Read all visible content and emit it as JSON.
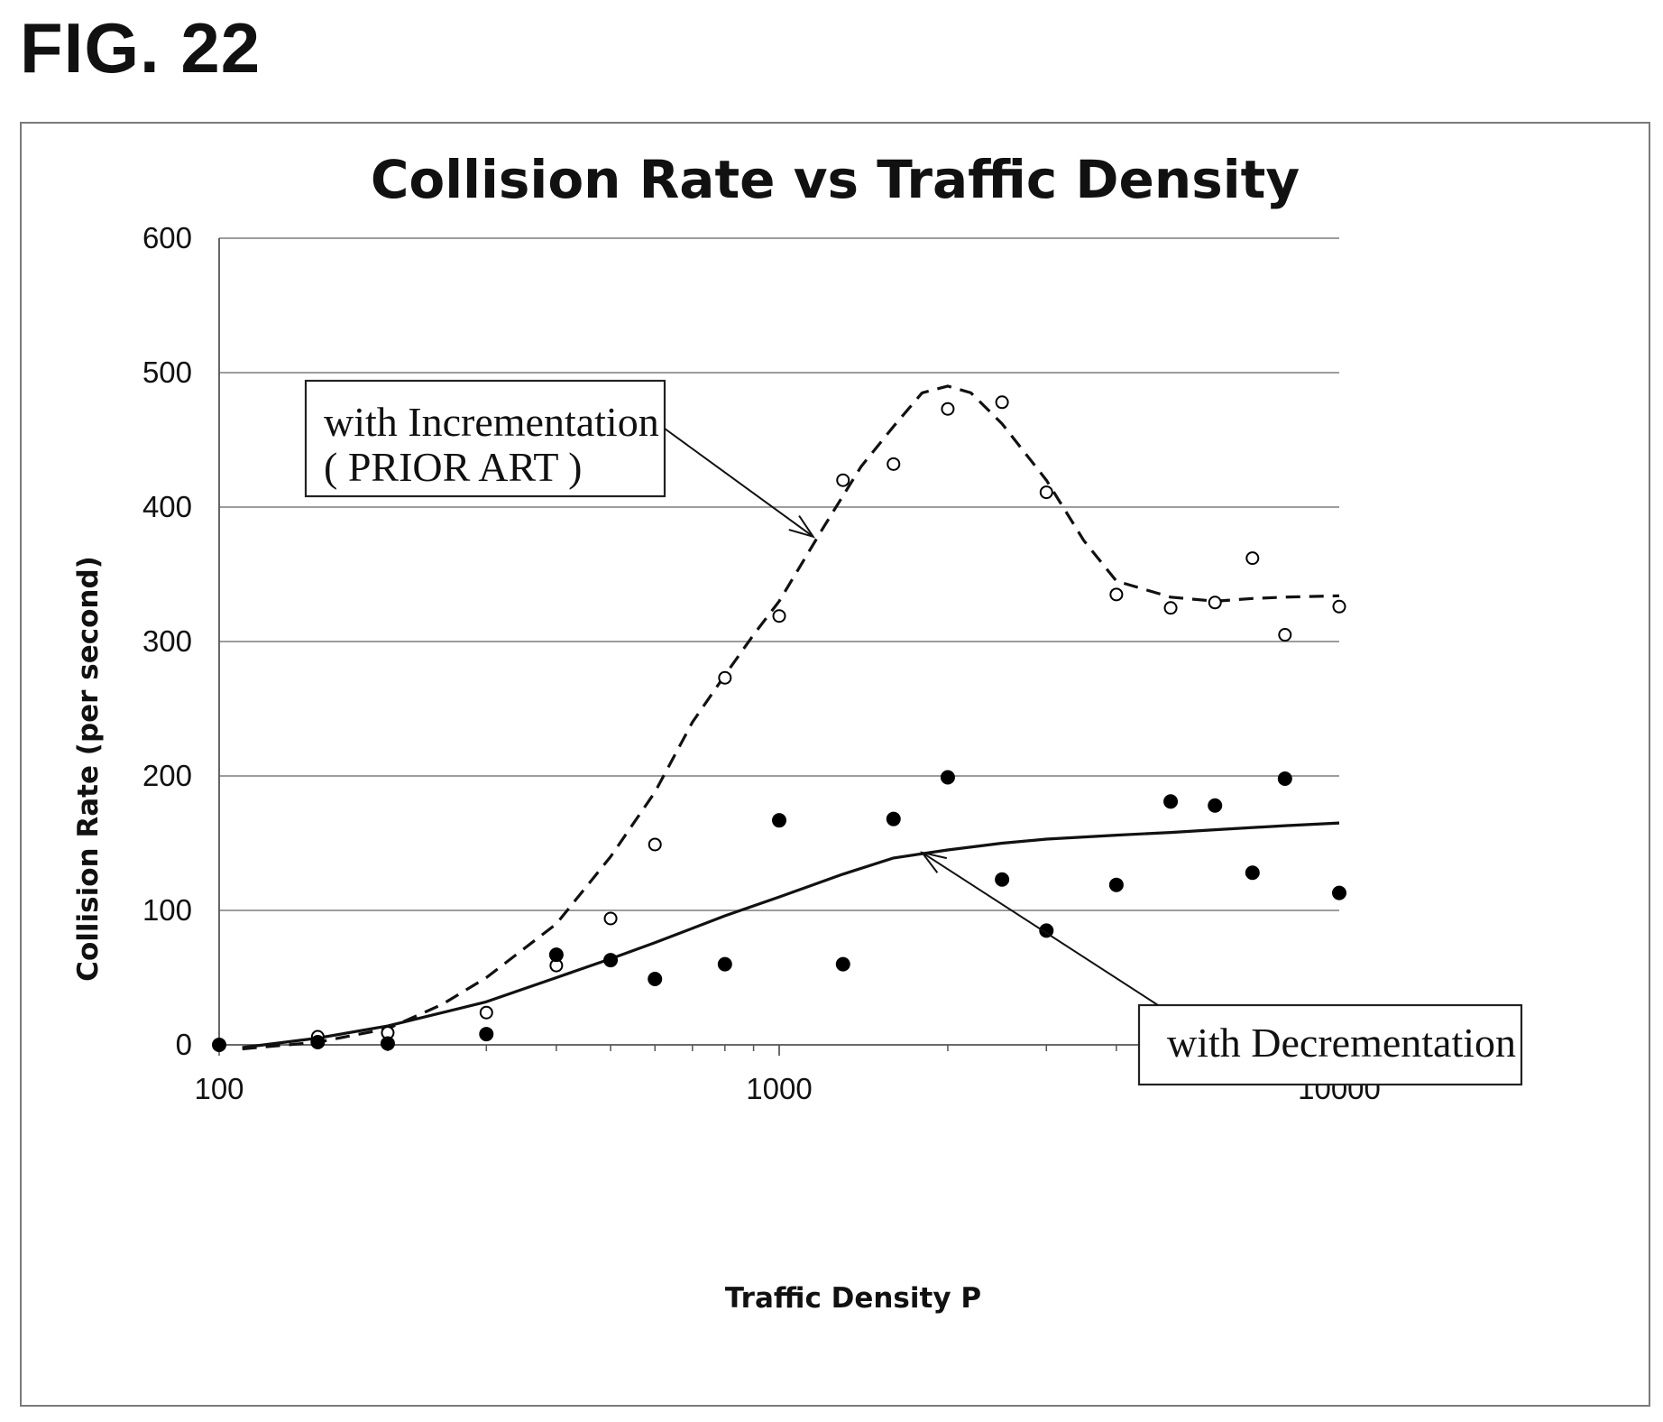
{
  "figure_label": "FIG. 22",
  "chart_data": {
    "type": "scatter",
    "title": "Collision Rate vs Traffic Density",
    "xlabel": "Traffic Density P",
    "ylabel": "Collision Rate  (per second)",
    "xscale": "log",
    "xlim": [
      100,
      10000
    ],
    "ylim": [
      0,
      600
    ],
    "x_ticks": [
      100,
      1000,
      10000
    ],
    "x_tick_labels": [
      "100",
      "1000",
      "10000"
    ],
    "y_ticks": [
      0,
      100,
      200,
      300,
      400,
      500,
      600
    ],
    "y_tick_labels": [
      "0",
      "100",
      "200",
      "300",
      "400",
      "500",
      "600"
    ],
    "grid": "horizontal",
    "legend": "none",
    "series": [
      {
        "marker": "open-circle",
        "points": [
          [
            100,
            0
          ],
          [
            150,
            6
          ],
          [
            200,
            9
          ],
          [
            300,
            24
          ],
          [
            400,
            59
          ],
          [
            500,
            94
          ],
          [
            600,
            149
          ],
          [
            800,
            273
          ],
          [
            1000,
            319
          ],
          [
            1300,
            420
          ],
          [
            1600,
            432
          ],
          [
            2000,
            473
          ],
          [
            2500,
            478
          ],
          [
            3000,
            411
          ],
          [
            4000,
            335
          ],
          [
            5000,
            325
          ],
          [
            6000,
            329
          ],
          [
            7000,
            362
          ],
          [
            8000,
            305
          ],
          [
            10000,
            326
          ]
        ]
      },
      {
        "marker": "filled-circle",
        "points": [
          [
            100,
            0
          ],
          [
            150,
            2
          ],
          [
            200,
            1
          ],
          [
            300,
            8
          ],
          [
            400,
            67
          ],
          [
            500,
            63
          ],
          [
            600,
            49
          ],
          [
            800,
            60
          ],
          [
            1000,
            167
          ],
          [
            1300,
            60
          ],
          [
            1600,
            168
          ],
          [
            2000,
            199
          ],
          [
            2500,
            123
          ],
          [
            3000,
            85
          ],
          [
            4000,
            119
          ],
          [
            5000,
            181
          ],
          [
            6000,
            178
          ],
          [
            7000,
            128
          ],
          [
            8000,
            198
          ],
          [
            10000,
            113
          ]
        ]
      }
    ],
    "trend_lines": [
      {
        "style": "dashed",
        "points": [
          [
            110,
            -3
          ],
          [
            150,
            2
          ],
          [
            200,
            12
          ],
          [
            250,
            30
          ],
          [
            300,
            50
          ],
          [
            400,
            90
          ],
          [
            500,
            140
          ],
          [
            600,
            188
          ],
          [
            700,
            240
          ],
          [
            800,
            275
          ],
          [
            900,
            305
          ],
          [
            1000,
            330
          ],
          [
            1200,
            385
          ],
          [
            1400,
            430
          ],
          [
            1600,
            460
          ],
          [
            1800,
            485
          ],
          [
            2000,
            490
          ],
          [
            2200,
            485
          ],
          [
            2500,
            462
          ],
          [
            3000,
            420
          ],
          [
            3500,
            375
          ],
          [
            4000,
            345
          ],
          [
            5000,
            333
          ],
          [
            6000,
            330
          ],
          [
            7000,
            332
          ],
          [
            8000,
            333
          ],
          [
            10000,
            334
          ]
        ]
      },
      {
        "style": "solid",
        "points": [
          [
            110,
            -2
          ],
          [
            150,
            5
          ],
          [
            200,
            14
          ],
          [
            300,
            32
          ],
          [
            400,
            50
          ],
          [
            500,
            64
          ],
          [
            600,
            76
          ],
          [
            800,
            96
          ],
          [
            1000,
            110
          ],
          [
            1300,
            127
          ],
          [
            1600,
            139
          ],
          [
            2000,
            145
          ],
          [
            2500,
            150
          ],
          [
            3000,
            153
          ],
          [
            4000,
            156
          ],
          [
            5000,
            158
          ],
          [
            6000,
            160
          ],
          [
            8000,
            163
          ],
          [
            10000,
            165
          ]
        ]
      }
    ],
    "annotations": [
      {
        "lines": [
          "with Incrementation",
          "( PRIOR ART )"
        ],
        "points_to": [
          1150,
          378
        ]
      },
      {
        "lines": [
          "with Decrementation"
        ],
        "points_to": [
          1800,
          143
        ]
      }
    ]
  }
}
